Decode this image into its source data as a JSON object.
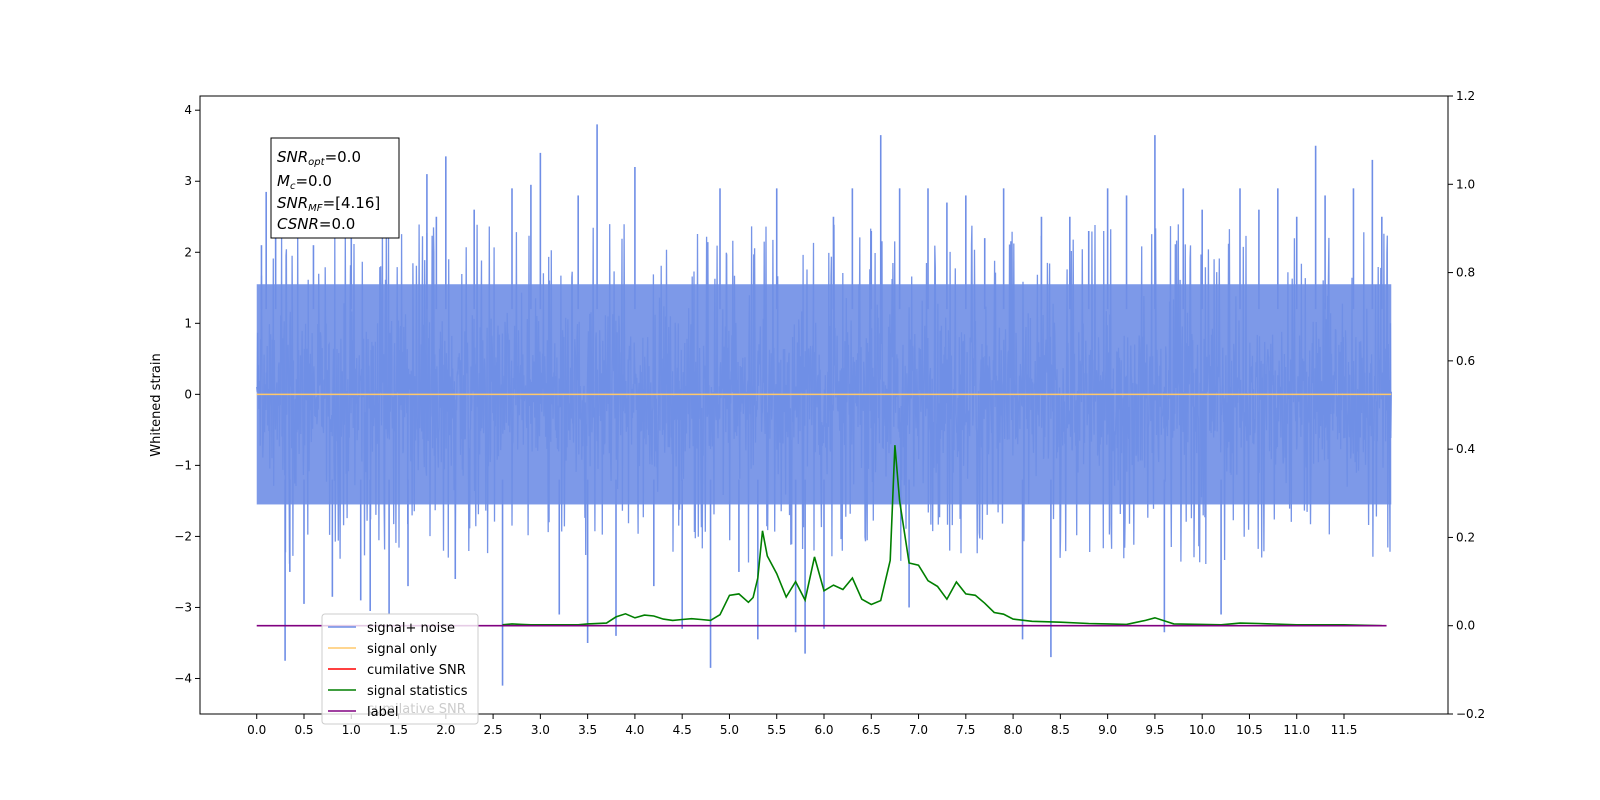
{
  "chart_data": {
    "type": "line",
    "title": "",
    "xlabel": "",
    "ylabel": "Whitened strain",
    "xlim": [
      -0.6,
      12.6
    ],
    "ylim": [
      -4.5,
      4.2
    ],
    "y2lim": [
      -0.2,
      1.2
    ],
    "xticks": [
      "0.0",
      "0.5",
      "1.0",
      "1.5",
      "2.0",
      "2.5",
      "3.0",
      "3.5",
      "4.0",
      "4.5",
      "5.0",
      "5.5",
      "6.0",
      "6.5",
      "7.0",
      "7.5",
      "8.0",
      "8.5",
      "9.0",
      "9.5",
      "10.0",
      "10.5",
      "11.0",
      "11.5"
    ],
    "yticks": [
      "4",
      "3",
      "2",
      "1",
      "0",
      "−1",
      "−2",
      "−3",
      "−4"
    ],
    "y2ticks": [
      "1.2",
      "1.0",
      "0.8",
      "0.6",
      "0.4",
      "0.2",
      "0.0",
      "−0.2"
    ],
    "grid": false,
    "legend_position": "lower-left",
    "info_box": {
      "lines": [
        {
          "main": "SNR",
          "sub": "opt",
          "rest": "=0.0"
        },
        {
          "main": "M",
          "sub": "c",
          "rest": "=0.0"
        },
        {
          "main": "SNR",
          "sub": "MF",
          "rest": "=[4.16]"
        },
        {
          "main": "CSNR",
          "sub": "",
          "rest": "=0.0"
        }
      ]
    },
    "legend": [
      {
        "label": "signal+ noise",
        "color": "#6f8ee6"
      },
      {
        "label": "signal only",
        "color": "#ffc96b"
      },
      {
        "label": "cumilative SNR",
        "color": "#ff0000"
      },
      {
        "label": "signal statistics",
        "color": "#007f00"
      },
      {
        "label": "label",
        "color": "#800080"
      }
    ],
    "ghost_legend_text": "cumilative SNR",
    "series": [
      {
        "name": "signal+ noise",
        "axis": "left",
        "color": "#6f8ee6",
        "x_start": 0.0,
        "x_end": 12.0,
        "noise_band": [
          -1.6,
          1.6
        ],
        "spikes": [
          {
            "x": 0.05,
            "y": 2.1
          },
          {
            "x": 0.1,
            "y": 2.85
          },
          {
            "x": 0.2,
            "y": 2.3
          },
          {
            "x": 0.3,
            "y": -3.75
          },
          {
            "x": 0.35,
            "y": -2.5
          },
          {
            "x": 0.5,
            "y": -2.95
          },
          {
            "x": 0.6,
            "y": 2.1
          },
          {
            "x": 0.8,
            "y": -2.85
          },
          {
            "x": 1.0,
            "y": 2.6
          },
          {
            "x": 1.1,
            "y": -2.9
          },
          {
            "x": 1.2,
            "y": -3.05
          },
          {
            "x": 1.4,
            "y": -3.1
          },
          {
            "x": 1.6,
            "y": -2.7
          },
          {
            "x": 1.8,
            "y": 3.1
          },
          {
            "x": 1.9,
            "y": 2.5
          },
          {
            "x": 2.0,
            "y": 3.35
          },
          {
            "x": 2.1,
            "y": -2.6
          },
          {
            "x": 2.3,
            "y": 2.6
          },
          {
            "x": 2.6,
            "y": -4.1
          },
          {
            "x": 2.7,
            "y": 2.9
          },
          {
            "x": 2.9,
            "y": 2.95
          },
          {
            "x": 3.0,
            "y": 3.4
          },
          {
            "x": 3.2,
            "y": -3.1
          },
          {
            "x": 3.4,
            "y": 2.8
          },
          {
            "x": 3.5,
            "y": -3.5
          },
          {
            "x": 3.6,
            "y": 3.8
          },
          {
            "x": 3.8,
            "y": -3.4
          },
          {
            "x": 4.0,
            "y": 3.2
          },
          {
            "x": 4.2,
            "y": -2.7
          },
          {
            "x": 4.5,
            "y": -3.3
          },
          {
            "x": 4.8,
            "y": -3.85
          },
          {
            "x": 4.9,
            "y": 2.9
          },
          {
            "x": 5.1,
            "y": -2.5
          },
          {
            "x": 5.3,
            "y": -3.45
          },
          {
            "x": 5.5,
            "y": 2.9
          },
          {
            "x": 5.7,
            "y": -3.35
          },
          {
            "x": 5.8,
            "y": -3.65
          },
          {
            "x": 6.0,
            "y": -3.3
          },
          {
            "x": 6.1,
            "y": 2.5
          },
          {
            "x": 6.3,
            "y": 2.9
          },
          {
            "x": 6.5,
            "y": 2.3
          },
          {
            "x": 6.6,
            "y": 3.65
          },
          {
            "x": 6.8,
            "y": 2.9
          },
          {
            "x": 6.9,
            "y": -3.0
          },
          {
            "x": 7.1,
            "y": 2.9
          },
          {
            "x": 7.3,
            "y": 2.7
          },
          {
            "x": 7.5,
            "y": 2.8
          },
          {
            "x": 7.7,
            "y": 2.2
          },
          {
            "x": 7.9,
            "y": 2.9
          },
          {
            "x": 8.1,
            "y": -3.45
          },
          {
            "x": 8.3,
            "y": 2.5
          },
          {
            "x": 8.4,
            "y": -3.7
          },
          {
            "x": 8.6,
            "y": 2.5
          },
          {
            "x": 8.8,
            "y": 2.3
          },
          {
            "x": 9.0,
            "y": 2.9
          },
          {
            "x": 9.2,
            "y": 2.8
          },
          {
            "x": 9.5,
            "y": 3.65
          },
          {
            "x": 9.6,
            "y": -3.35
          },
          {
            "x": 9.8,
            "y": 2.9
          },
          {
            "x": 10.0,
            "y": 2.6
          },
          {
            "x": 10.2,
            "y": -3.1
          },
          {
            "x": 10.4,
            "y": 2.9
          },
          {
            "x": 10.6,
            "y": 2.6
          },
          {
            "x": 10.8,
            "y": 2.9
          },
          {
            "x": 11.0,
            "y": 2.5
          },
          {
            "x": 11.2,
            "y": 3.5
          },
          {
            "x": 11.3,
            "y": 2.8
          },
          {
            "x": 11.6,
            "y": 2.9
          },
          {
            "x": 11.8,
            "y": 3.3
          },
          {
            "x": 11.9,
            "y": 2.5
          }
        ]
      },
      {
        "name": "signal only",
        "axis": "left",
        "color": "#ffc96b",
        "x": [
          0.0,
          12.0
        ],
        "y": [
          0.0,
          0.0
        ]
      },
      {
        "name": "signal statistics",
        "axis": "right",
        "color": "#007f00",
        "x": [
          2.6,
          2.7,
          2.8,
          2.9,
          3.0,
          3.2,
          3.4,
          3.5,
          3.7,
          3.8,
          3.9,
          4.0,
          4.1,
          4.2,
          4.3,
          4.4,
          4.5,
          4.6,
          4.7,
          4.8,
          4.9,
          5.0,
          5.1,
          5.2,
          5.25,
          5.3,
          5.35,
          5.4,
          5.5,
          5.6,
          5.7,
          5.8,
          5.9,
          6.0,
          6.1,
          6.2,
          6.3,
          6.4,
          6.5,
          6.6,
          6.7,
          6.75,
          6.8,
          6.9,
          7.0,
          7.1,
          7.2,
          7.3,
          7.4,
          7.5,
          7.6,
          7.7,
          7.8,
          7.9,
          8.0,
          8.2,
          8.5,
          8.8,
          9.0,
          9.2,
          9.4,
          9.5,
          9.7,
          10.0,
          10.2,
          10.4,
          10.6,
          11.0,
          11.5,
          11.9
        ],
        "y": [
          0.002,
          0.004,
          0.003,
          0.002,
          0.002,
          0.002,
          0.002,
          0.004,
          0.006,
          0.02,
          0.027,
          0.018,
          0.024,
          0.022,
          0.015,
          0.012,
          0.014,
          0.016,
          0.014,
          0.012,
          0.025,
          0.069,
          0.072,
          0.053,
          0.064,
          0.108,
          0.215,
          0.158,
          0.118,
          0.065,
          0.1,
          0.058,
          0.156,
          0.079,
          0.092,
          0.082,
          0.108,
          0.06,
          0.048,
          0.057,
          0.148,
          0.409,
          0.283,
          0.142,
          0.137,
          0.102,
          0.089,
          0.06,
          0.099,
          0.072,
          0.069,
          0.051,
          0.03,
          0.026,
          0.015,
          0.01,
          0.008,
          0.005,
          0.004,
          0.003,
          0.012,
          0.018,
          0.004,
          0.003,
          0.002,
          0.006,
          0.005,
          0.002,
          0.002,
          0.0
        ],
        "truncated": false
      },
      {
        "name": "label",
        "axis": "right",
        "color": "#800080",
        "x": [
          0.0,
          11.95
        ],
        "y": [
          0.0,
          0.0
        ]
      }
    ]
  }
}
